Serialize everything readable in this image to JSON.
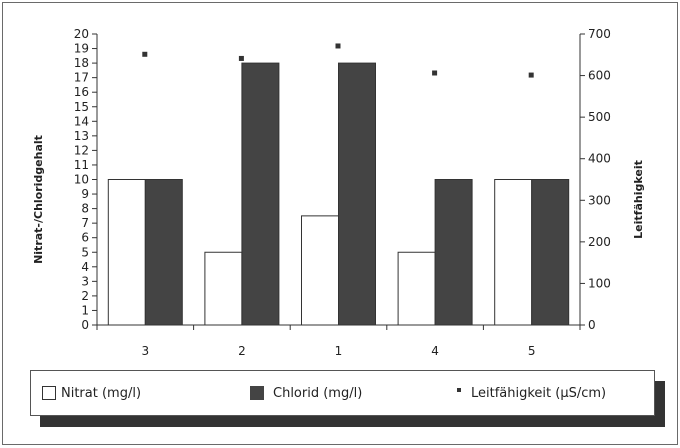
{
  "chart_data": {
    "type": "bar",
    "categories": [
      "3",
      "2",
      "1",
      "4",
      "5"
    ],
    "series": [
      {
        "name": "Nitrat (mg/l)",
        "type": "bar",
        "axis": "left",
        "color": "#ffffff",
        "values": [
          10,
          5,
          7.5,
          5,
          10
        ]
      },
      {
        "name": "Chlorid (mg/l)",
        "type": "bar",
        "axis": "left",
        "color": "#444444",
        "values": [
          10,
          18,
          18,
          10,
          10
        ]
      },
      {
        "name": "Leitfähigkeit (µS/cm)",
        "type": "scatter",
        "axis": "right",
        "color": "#333333",
        "values": [
          650,
          640,
          670,
          605,
          600
        ]
      }
    ],
    "ylabel": "Nitrat-/Chloridgehalt",
    "ylabel_right": "Leitfähigkeit",
    "xlabel": "",
    "ylim": [
      0,
      20
    ],
    "ylim_right": [
      0,
      700
    ],
    "yticks": [
      0,
      1,
      2,
      3,
      4,
      5,
      6,
      7,
      8,
      9,
      10,
      11,
      12,
      13,
      14,
      15,
      16,
      17,
      18,
      19,
      20
    ],
    "yticks_right": [
      0,
      100,
      200,
      300,
      400,
      500,
      600,
      700
    ],
    "grid": false,
    "legend_position": "bottom"
  },
  "legend": {
    "nitrat": "Nitrat (mg/l)",
    "chlorid": "Chlorid (mg/l)",
    "leit": "Leitfähigkeit (µS/cm)"
  }
}
